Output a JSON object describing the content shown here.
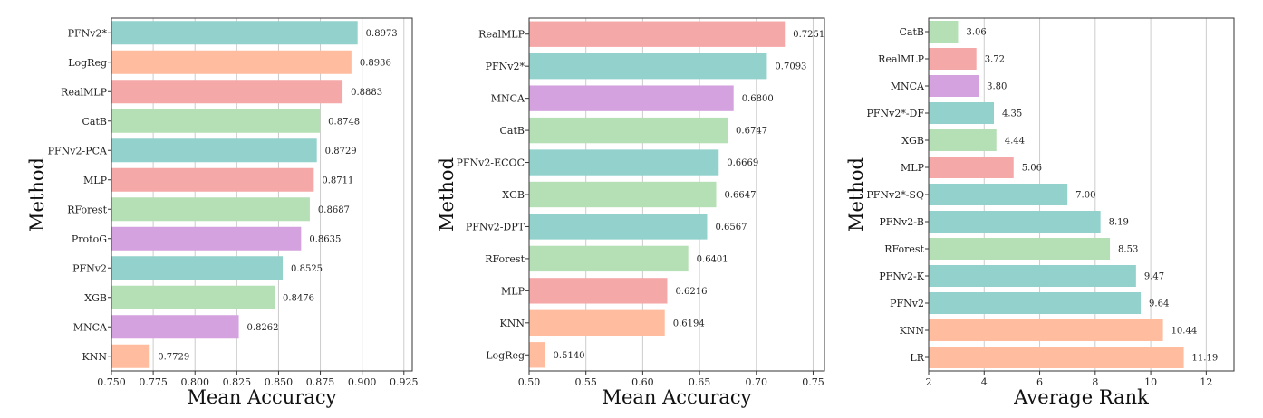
{
  "chart_data": [
    {
      "type": "bar",
      "orientation": "horizontal",
      "xlabel": "Mean Accuracy",
      "ylabel": "Method",
      "xlim": [
        0.75,
        0.93
      ],
      "xticks": [
        "0.750",
        "0.775",
        "0.800",
        "0.825",
        "0.850",
        "0.875",
        "0.900",
        "0.925"
      ],
      "xtick_values": [
        0.75,
        0.775,
        0.8,
        0.825,
        0.85,
        0.875,
        0.9,
        0.925
      ],
      "grid": "vertical",
      "categories": [
        "PFNv2*",
        "LogReg",
        "RealMLP",
        "CatB",
        "PFNv2-PCA",
        "MLP",
        "RForest",
        "ProtoG",
        "PFNv2",
        "XGB",
        "MNCA",
        "KNN"
      ],
      "values": [
        0.8973,
        0.8936,
        0.8883,
        0.8748,
        0.8729,
        0.8711,
        0.8687,
        0.8635,
        0.8525,
        0.8476,
        0.8262,
        0.7729
      ],
      "value_labels": [
        "0.8973",
        "0.8936",
        "0.8883",
        "0.8748",
        "0.8729",
        "0.8711",
        "0.8687",
        "0.8635",
        "0.8525",
        "0.8476",
        "0.8262",
        "0.7729"
      ],
      "colors": [
        "#93d2cc",
        "#ffbc9e",
        "#f5a8a8",
        "#b5dfb4",
        "#93d2cc",
        "#f5a8a8",
        "#b5dfb4",
        "#d4a2de",
        "#93d2cc",
        "#b5dfb4",
        "#d4a2de",
        "#ffbc9e"
      ]
    },
    {
      "type": "bar",
      "orientation": "horizontal",
      "xlabel": "Mean Accuracy",
      "ylabel": "Method",
      "xlim": [
        0.5,
        0.76
      ],
      "xticks": [
        "0.50",
        "0.55",
        "0.60",
        "0.65",
        "0.70",
        "0.75"
      ],
      "xtick_values": [
        0.5,
        0.55,
        0.6,
        0.65,
        0.7,
        0.75
      ],
      "grid": "vertical",
      "categories": [
        "RealMLP",
        "PFNv2*",
        "MNCA",
        "CatB",
        "PFNv2-ECOC",
        "XGB",
        "PFNv2-DPT",
        "RForest",
        "MLP",
        "KNN",
        "LogReg"
      ],
      "values": [
        0.7251,
        0.7093,
        0.68,
        0.6747,
        0.6669,
        0.6647,
        0.6567,
        0.6401,
        0.6216,
        0.6194,
        0.514
      ],
      "value_labels": [
        "0.7251",
        "0.7093",
        "0.6800",
        "0.6747",
        "0.6669",
        "0.6647",
        "0.6567",
        "0.6401",
        "0.6216",
        "0.6194",
        "0.5140"
      ],
      "colors": [
        "#f5a8a8",
        "#93d2cc",
        "#d4a2de",
        "#b5dfb4",
        "#93d2cc",
        "#b5dfb4",
        "#93d2cc",
        "#b5dfb4",
        "#f5a8a8",
        "#ffbc9e",
        "#ffbc9e"
      ]
    },
    {
      "type": "bar",
      "orientation": "horizontal",
      "xlabel": "Average Rank",
      "ylabel": "Method",
      "xlim": [
        2,
        13
      ],
      "xticks": [
        "2",
        "4",
        "6",
        "8",
        "10",
        "12"
      ],
      "xtick_values": [
        2,
        4,
        6,
        8,
        10,
        12
      ],
      "grid": "vertical",
      "categories": [
        "CatB",
        "RealMLP",
        "MNCA",
        "PFNv2*-DF",
        "XGB",
        "MLP",
        "PFNv2*-SQ",
        "PFNv2-B",
        "RForest",
        "PFNv2-K",
        "PFNv2",
        "KNN",
        "LR"
      ],
      "values": [
        3.06,
        3.72,
        3.8,
        4.35,
        4.44,
        5.06,
        7.0,
        8.19,
        8.53,
        9.47,
        9.64,
        10.44,
        11.19
      ],
      "value_labels": [
        "3.06",
        "3.72",
        "3.80",
        "4.35",
        "4.44",
        "5.06",
        "7.00",
        "8.19",
        "8.53",
        "9.47",
        "9.64",
        "10.44",
        "11.19"
      ],
      "colors": [
        "#b5dfb4",
        "#f5a8a8",
        "#d4a2de",
        "#93d2cc",
        "#b5dfb4",
        "#f5a8a8",
        "#93d2cc",
        "#93d2cc",
        "#b5dfb4",
        "#93d2cc",
        "#93d2cc",
        "#ffbc9e",
        "#ffbc9e"
      ]
    }
  ]
}
